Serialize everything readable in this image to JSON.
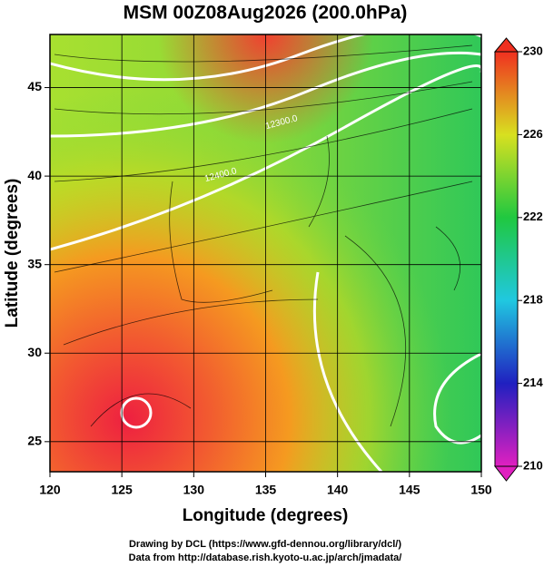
{
  "chart_data": {
    "type": "map",
    "title": "MSM 00Z08Aug2026 (200.0hPa)",
    "xlabel": "Longitude (degrees)",
    "ylabel": "Latitude  (degrees)",
    "xlim": [
      120,
      150
    ],
    "ylim": [
      23.3,
      48
    ],
    "xticks": [
      120,
      125,
      130,
      135,
      140,
      145,
      150
    ],
    "yticks": [
      25,
      30,
      35,
      40,
      45
    ],
    "grid": true,
    "colorbar": {
      "lim": [
        210,
        230
      ],
      "ticks": [
        210,
        214,
        218,
        222,
        226,
        230
      ]
    },
    "contour_labels": [
      "12400.0",
      "12300.0"
    ],
    "footer": [
      "Drawing by DCL (https://www.gfd-dennou.org/library/dcl/)",
      "Data from http://database.rish.kyoto-u.ac.jp/arch/jmadata/"
    ]
  }
}
